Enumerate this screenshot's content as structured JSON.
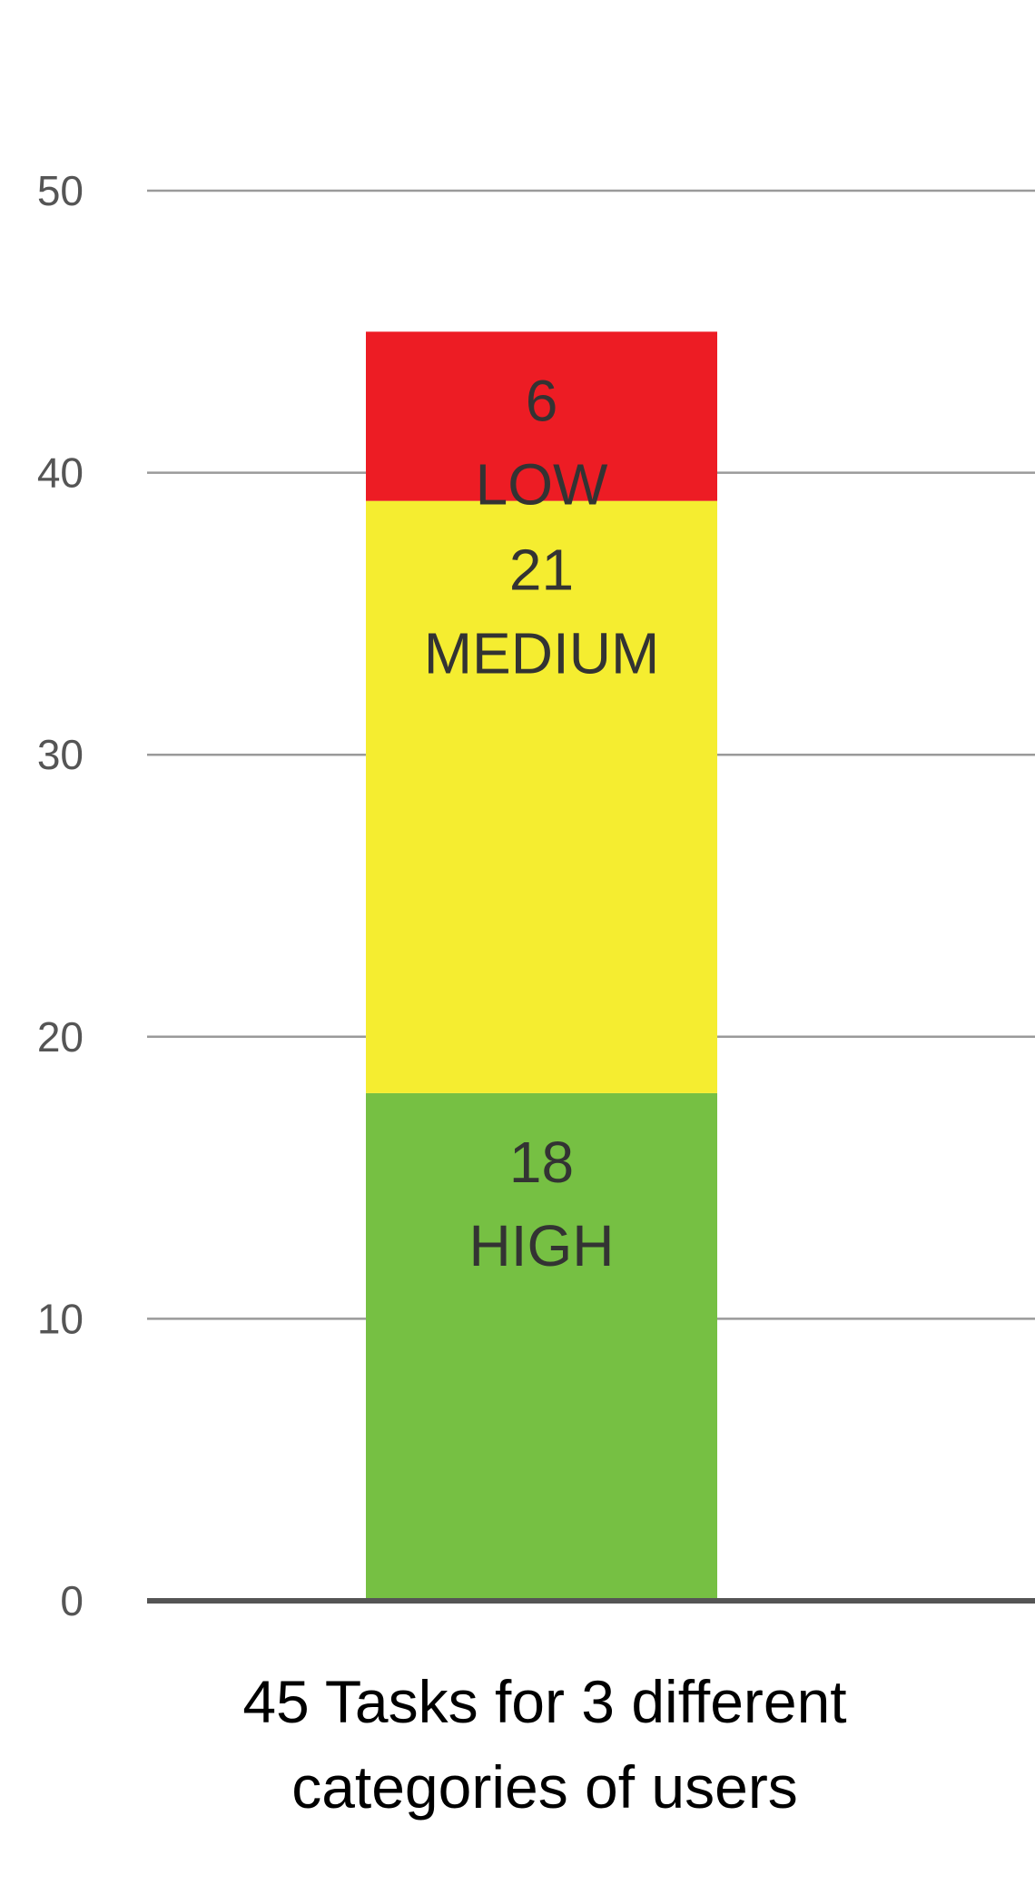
{
  "chart_data": {
    "type": "bar",
    "stacked": true,
    "categories": [
      "45 Tasks for 3 different categories of users"
    ],
    "series": [
      {
        "name": "HIGH",
        "value": 18,
        "label_value": "18",
        "label_text": "HIGH",
        "color": "#76c043"
      },
      {
        "name": "MEDIUM",
        "value": 21,
        "label_value": "21",
        "label_text": "MEDIUM",
        "color": "#f5ed30"
      },
      {
        "name": "LOW",
        "value": 6,
        "label_value": "6",
        "label_text": "LOW",
        "color": "#ed1c24"
      }
    ],
    "xlabel_lines": [
      "45 Tasks for 3 different",
      "categories of users"
    ],
    "ylim": [
      0,
      50
    ],
    "yticks": [
      "0",
      "10",
      "20",
      "30",
      "40",
      "50"
    ],
    "grid": true
  }
}
